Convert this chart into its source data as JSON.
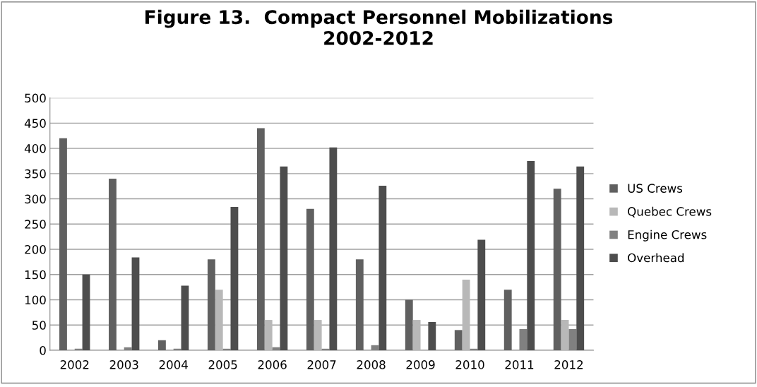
{
  "chart_data": {
    "type": "bar",
    "title": "Figure 13.  Compact Personnel Mobilizations\n2002-2012",
    "categories": [
      "2002",
      "2003",
      "2004",
      "2005",
      "2006",
      "2007",
      "2008",
      "2009",
      "2010",
      "2011",
      "2012"
    ],
    "series": [
      {
        "name": "US Crews",
        "color": "#606060",
        "values": [
          420,
          340,
          20,
          180,
          440,
          280,
          180,
          100,
          40,
          120,
          320
        ]
      },
      {
        "name": "Quebec Crews",
        "color": "#b8b8b8",
        "values": [
          0,
          0,
          0,
          120,
          60,
          60,
          0,
          60,
          140,
          0,
          60
        ]
      },
      {
        "name": "Engine Crews",
        "color": "#808080",
        "values": [
          3,
          6,
          3,
          3,
          6,
          3,
          10,
          0,
          3,
          42,
          42
        ]
      },
      {
        "name": "Overhead",
        "color": "#4d4d4d",
        "values": [
          150,
          184,
          128,
          284,
          364,
          402,
          326,
          56,
          219,
          375,
          364
        ]
      }
    ],
    "ylim": [
      0,
      500
    ],
    "yticks": [
      0,
      50,
      100,
      150,
      200,
      250,
      300,
      350,
      400,
      450,
      500
    ],
    "grid": "y",
    "legend": "right"
  }
}
